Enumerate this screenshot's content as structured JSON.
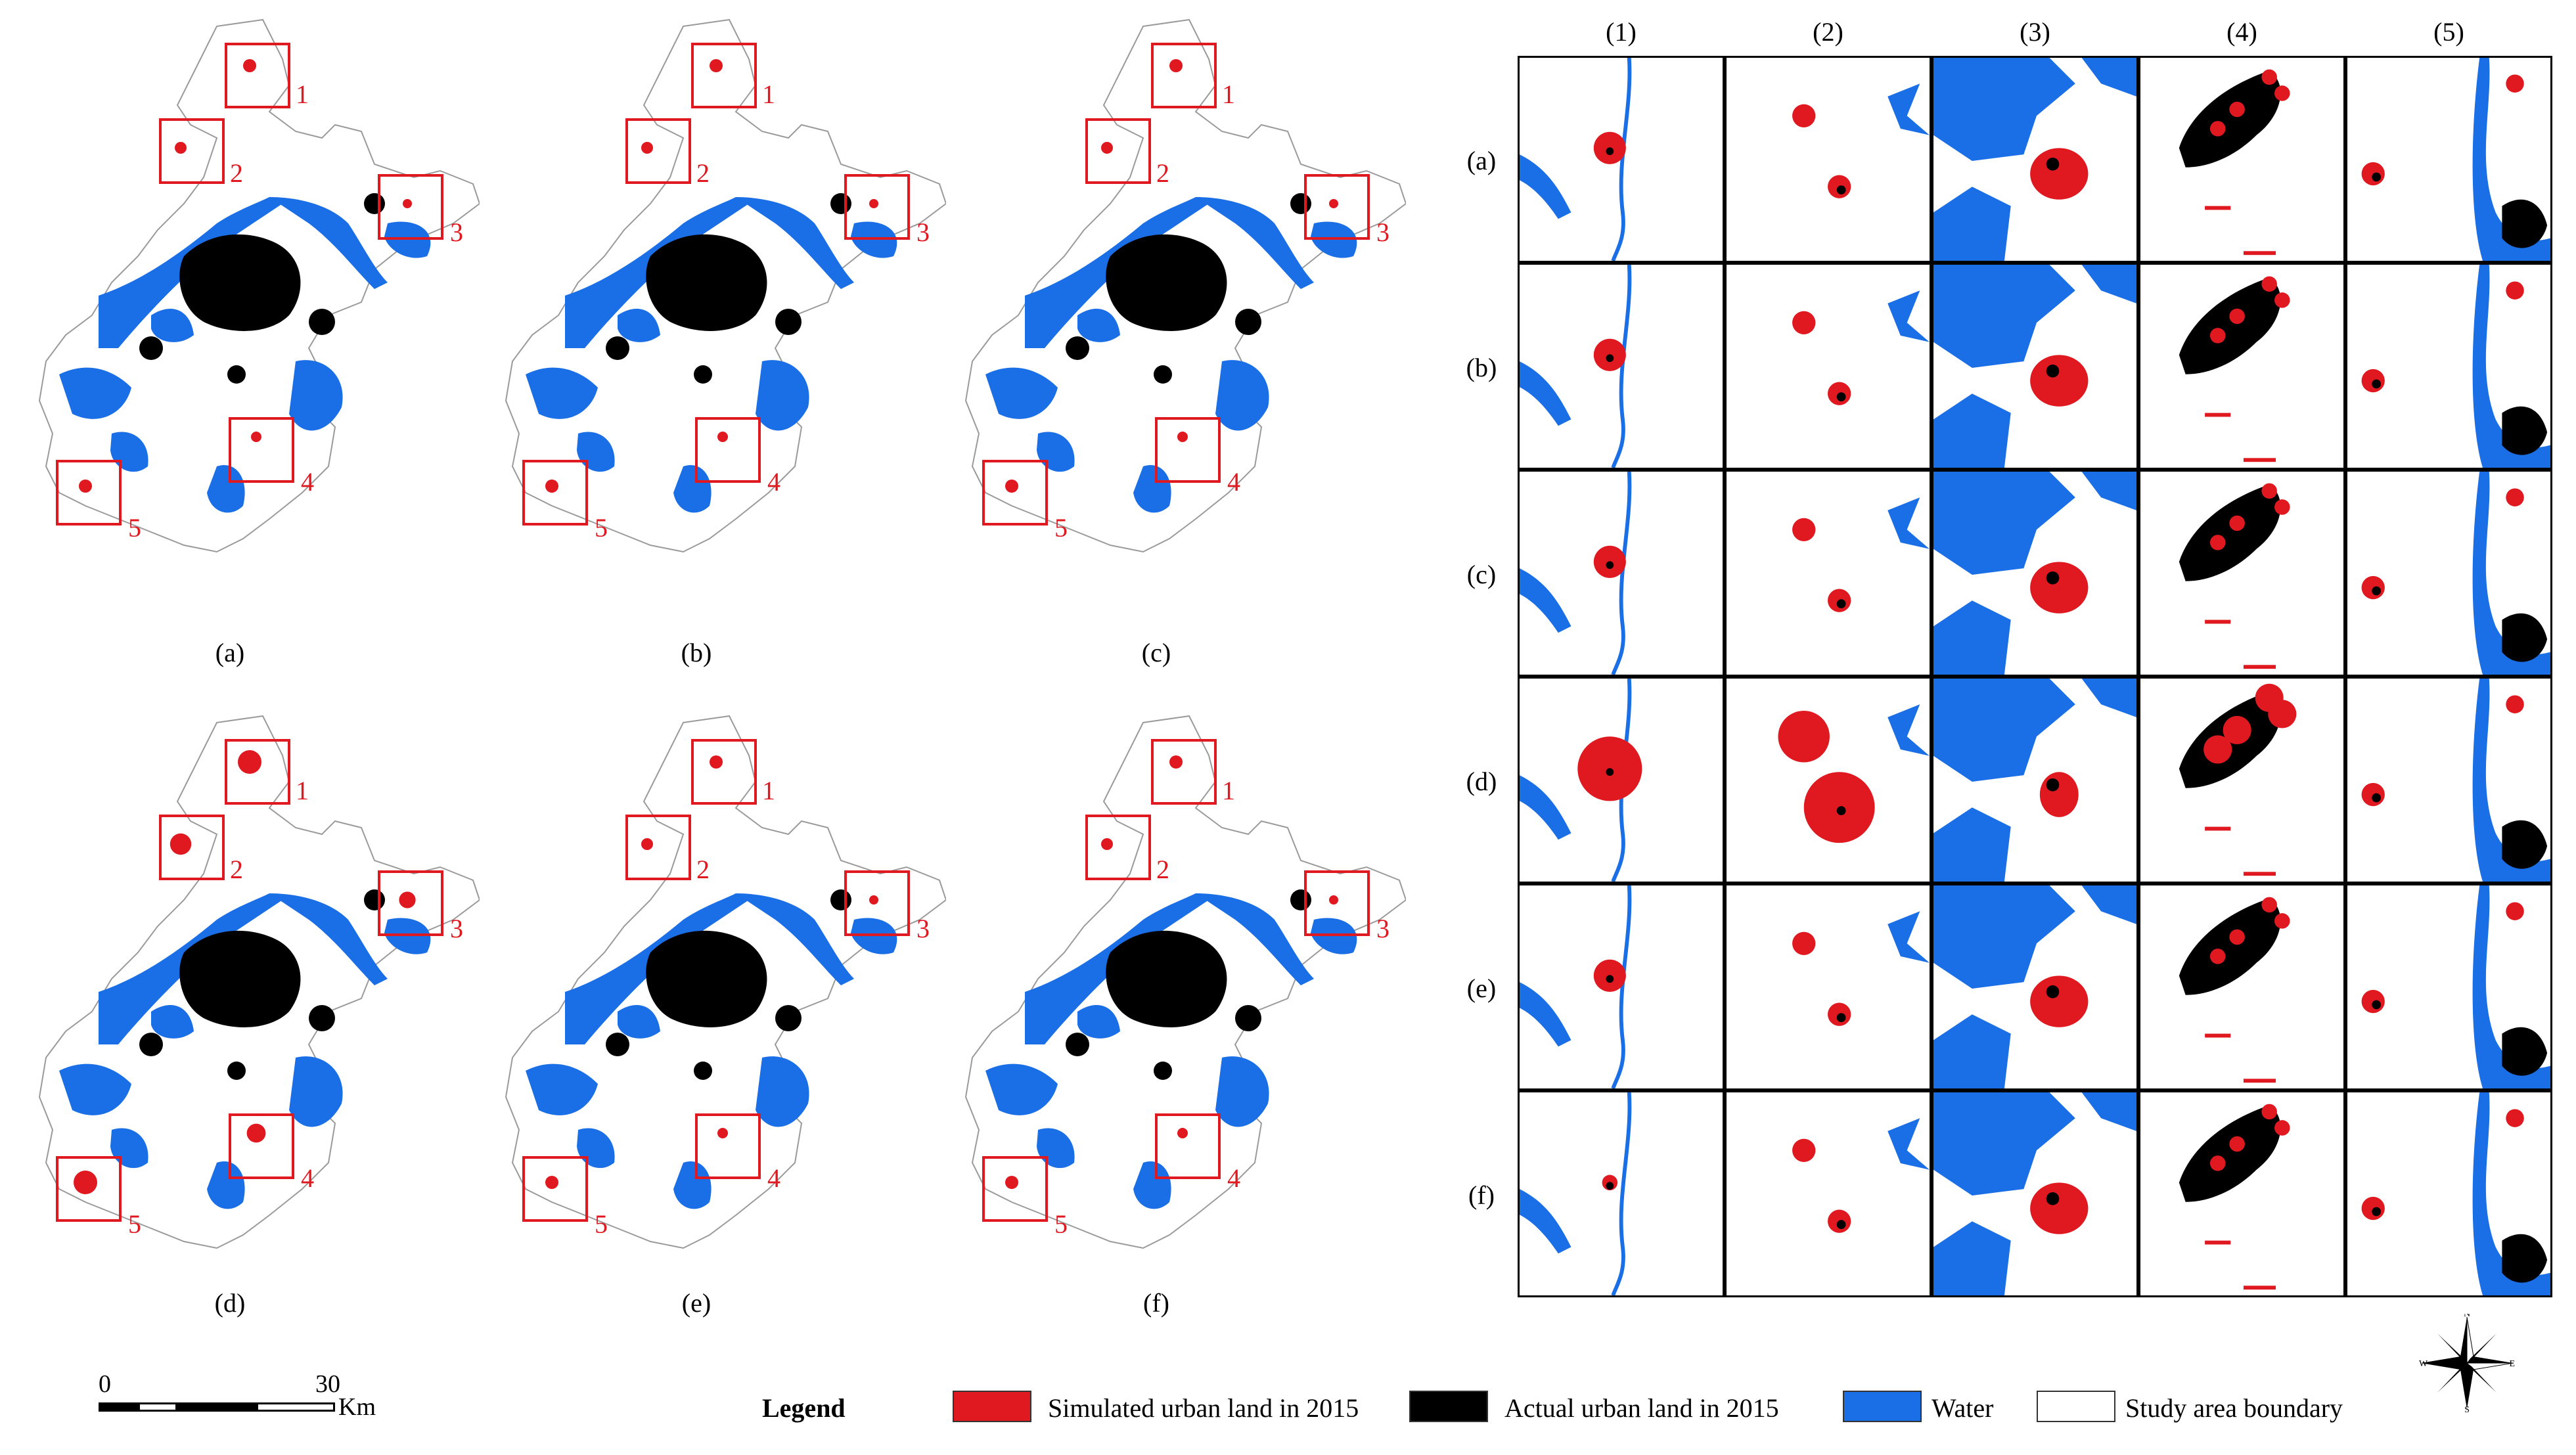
{
  "maps": [
    {
      "label": "(a)",
      "zoom_labels": [
        "1",
        "2",
        "3",
        "4",
        "5"
      ]
    },
    {
      "label": "(b)",
      "zoom_labels": [
        "1",
        "2",
        "3",
        "4",
        "5"
      ]
    },
    {
      "label": "(c)",
      "zoom_labels": [
        "1",
        "2",
        "3",
        "4",
        "5"
      ]
    },
    {
      "label": "(d)",
      "zoom_labels": [
        "1",
        "2",
        "3",
        "4",
        "5"
      ]
    },
    {
      "label": "(e)",
      "zoom_labels": [
        "1",
        "2",
        "3",
        "4",
        "5"
      ]
    },
    {
      "label": "(f)",
      "zoom_labels": [
        "1",
        "2",
        "3",
        "4",
        "5"
      ]
    }
  ],
  "grid": {
    "columns": [
      "(1)",
      "(2)",
      "(3)",
      "(4)",
      "(5)"
    ],
    "rows": [
      "(a)",
      "(b)",
      "(c)",
      "(d)",
      "(e)",
      "(f)"
    ]
  },
  "scale_bar": {
    "start": "0",
    "end": "30",
    "unit": "Km"
  },
  "legend": {
    "title": "Legend",
    "items": [
      {
        "label": "Simulated urban land in 2015",
        "color": "#e0181f"
      },
      {
        "label": "Actual urban land in 2015",
        "color": "#000000"
      },
      {
        "label": "Water",
        "color": "#1a6ee6"
      },
      {
        "label": "Study area boundary",
        "color": "#ffffff"
      }
    ]
  },
  "compass": {
    "n": "N",
    "s": "S",
    "e": "E",
    "w": "W"
  },
  "colors": {
    "simulated": "#e0181f",
    "actual": "#000000",
    "water": "#1a6ee6",
    "boundary": "#9a9a9a"
  }
}
